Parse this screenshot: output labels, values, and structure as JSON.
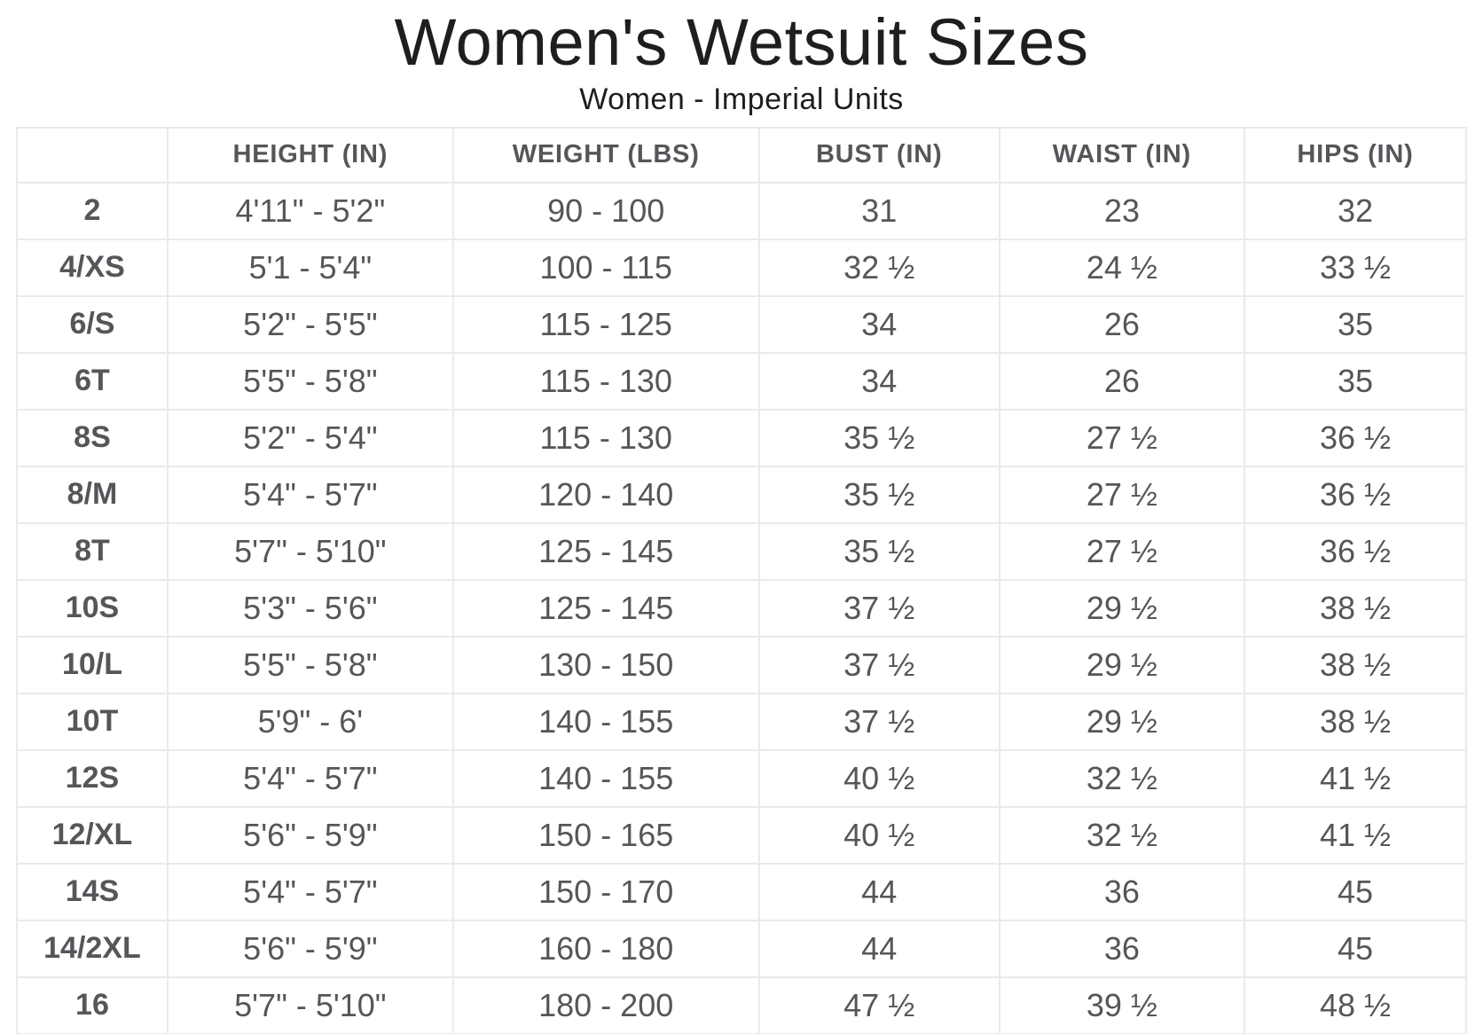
{
  "page": {
    "title": "Women's Wetsuit Sizes",
    "subtitle": "Women - Imperial Units"
  },
  "chart_data": {
    "type": "table",
    "title": "Women's Wetsuit Sizes",
    "subtitle": "Women - Imperial Units",
    "columns": [
      "",
      "HEIGHT (IN)",
      "WEIGHT (LBS)",
      "BUST (IN)",
      "WAIST (IN)",
      "HIPS (IN)"
    ],
    "rows": [
      [
        "2",
        "4'11\" - 5'2\"",
        "90 - 100",
        "31",
        "23",
        "32"
      ],
      [
        "4/XS",
        "5'1 - 5'4\"",
        "100 - 115",
        "32 ½",
        "24 ½",
        "33 ½"
      ],
      [
        "6/S",
        "5'2\" - 5'5\"",
        "115 - 125",
        "34",
        "26",
        "35"
      ],
      [
        "6T",
        "5'5\" - 5'8\"",
        "115 - 130",
        "34",
        "26",
        "35"
      ],
      [
        "8S",
        "5'2\" - 5'4\"",
        "115 - 130",
        "35 ½",
        "27 ½",
        "36 ½"
      ],
      [
        "8/M",
        "5'4\" - 5'7\"",
        "120 - 140",
        "35 ½",
        "27 ½",
        "36 ½"
      ],
      [
        "8T",
        "5'7\" - 5'10\"",
        "125 - 145",
        "35 ½",
        "27 ½",
        "36 ½"
      ],
      [
        "10S",
        "5'3\" - 5'6\"",
        "125 - 145",
        "37 ½",
        "29 ½",
        "38 ½"
      ],
      [
        "10/L",
        "5'5\" - 5'8\"",
        "130 - 150",
        "37 ½",
        "29 ½",
        "38 ½"
      ],
      [
        "10T",
        "5'9\" - 6'",
        "140 - 155",
        "37 ½",
        "29 ½",
        "38 ½"
      ],
      [
        "12S",
        "5'4\" - 5'7\"",
        "140 - 155",
        "40 ½",
        "32 ½",
        "41 ½"
      ],
      [
        "12/XL",
        "5'6\" - 5'9\"",
        "150 - 165",
        "40 ½",
        "32 ½",
        "41 ½"
      ],
      [
        "14S",
        "5'4\" - 5'7\"",
        "150 - 170",
        "44",
        "36",
        "45"
      ],
      [
        "14/2XL",
        "5'6\" - 5'9\"",
        "160 - 180",
        "44",
        "36",
        "45"
      ],
      [
        "16",
        "5'7\" - 5'10\"",
        "180 - 200",
        "47 ½",
        "39 ½",
        "48 ½"
      ]
    ],
    "colors": {
      "background": "#ffffff",
      "border": "#e9eaec",
      "body_text": "#55565a",
      "title_text": "#1d1e20"
    },
    "layout": {
      "grid": true,
      "zebra_striping": false,
      "text_align": "center"
    }
  }
}
